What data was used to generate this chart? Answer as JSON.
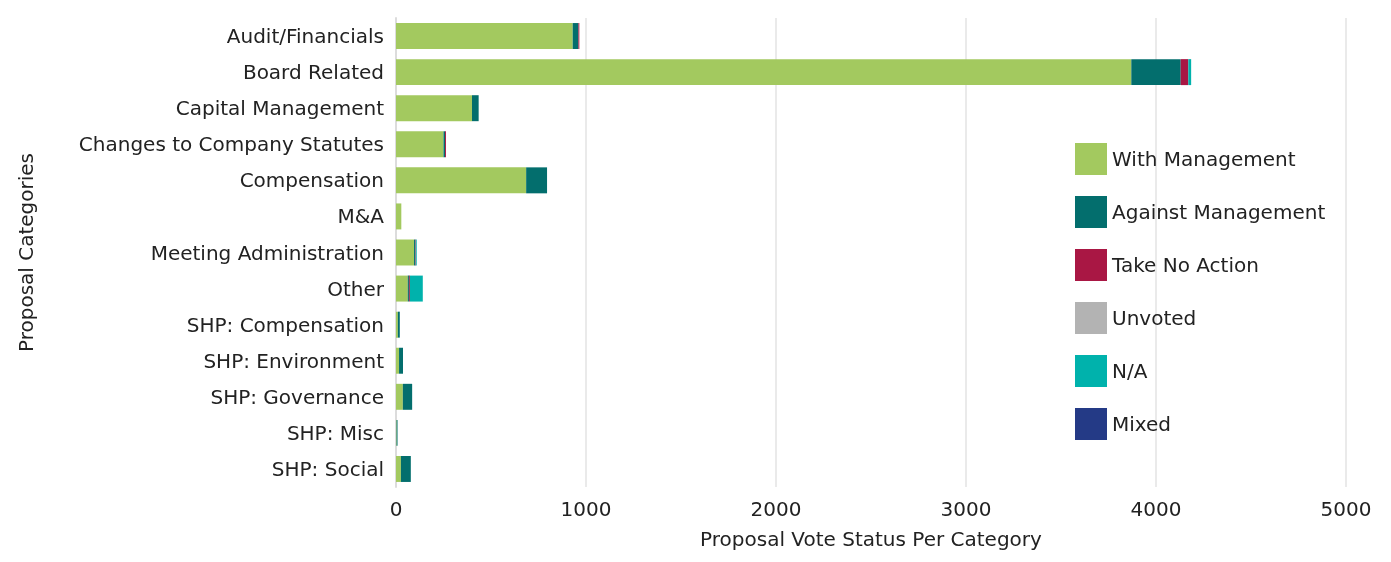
{
  "chart_data": {
    "type": "bar",
    "orientation": "horizontal",
    "stacked": true,
    "categories": [
      "Audit/Financials",
      "Board Related",
      "Capital Management",
      "Changes to Company Statutes",
      "Compensation",
      "M&A",
      "Meeting Administration",
      "Other",
      "SHP: Compensation",
      "SHP: Environment",
      "SHP: Governance",
      "SHP: Misc",
      "SHP: Social"
    ],
    "series": [
      {
        "name": "With Management",
        "color": "#a3c95f",
        "values": [
          930,
          3870,
          400,
          250,
          685,
          28,
          95,
          62,
          10,
          16,
          36,
          3,
          26
        ]
      },
      {
        "name": "Against Management",
        "color": "#036e6d",
        "values": [
          30,
          260,
          35,
          8,
          110,
          0,
          6,
          6,
          10,
          21,
          49,
          5,
          52
        ]
      },
      {
        "name": "Take No Action",
        "color": "#a91744",
        "values": [
          5,
          40,
          0,
          5,
          0,
          0,
          3,
          5,
          0,
          0,
          0,
          0,
          0
        ]
      },
      {
        "name": "Unvoted",
        "color": "#b3b3b3",
        "values": [
          0,
          null,
          0,
          0,
          null,
          0,
          0,
          0,
          0,
          0,
          null,
          0,
          null
        ]
      },
      {
        "name": "N/A",
        "color": "#00b2ac",
        "values": [
          0,
          15,
          0,
          0,
          0,
          null,
          5,
          68,
          0,
          0,
          0,
          0,
          0
        ]
      },
      {
        "name": "Mixed",
        "color": "#243a86",
        "values": [
          0,
          0,
          0,
          0,
          0,
          0,
          0,
          0,
          0,
          0,
          0,
          0,
          0
        ]
      }
    ],
    "xlim": [
      0,
      5000
    ],
    "xticks": [
      0,
      1000,
      2000,
      3000,
      4000,
      5000
    ],
    "xlabel": "Proposal Vote Status Per Category",
    "ylabel": "Proposal Categories",
    "grid": "x",
    "legend": "right"
  }
}
